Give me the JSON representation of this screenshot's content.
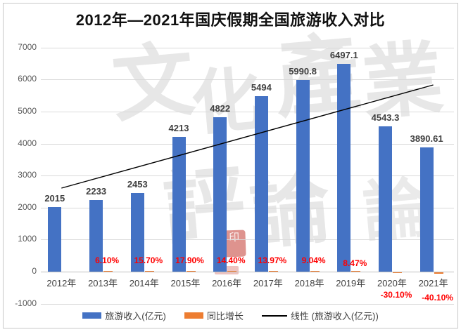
{
  "title": "2012年—2021年国庆假期全国旅游收入对比",
  "watermark": {
    "chars": [
      "文",
      "化",
      "產",
      "業",
      "評",
      "論",
      "論"
    ],
    "stamp_char": "印"
  },
  "chart_data": {
    "type": "bar",
    "title": "2012年—2021年国庆假期全国旅游收入对比",
    "categories": [
      "2012年",
      "2013年",
      "2014年",
      "2015年",
      "2016年",
      "2017年",
      "2018年",
      "2019年",
      "2020年",
      "2021年"
    ],
    "series": [
      {
        "name": "旅游收入(亿元)",
        "type": "bar",
        "color": "#4472C4",
        "values": [
          2015,
          2233,
          2453,
          4213,
          4822,
          5494,
          5990.8,
          6497.1,
          4543.3,
          3890.61
        ],
        "labels": [
          "2015",
          "2233",
          "2453",
          "4213",
          "4822",
          "5494",
          "5990.8",
          "6497.1",
          "4543.3",
          "3890.61"
        ]
      },
      {
        "name": "同比增长",
        "type": "bar",
        "color": "#ED7D31",
        "values": [
          null,
          6.1,
          15.7,
          17.9,
          14.4,
          13.97,
          9.04,
          8.47,
          -30.1,
          -40.1
        ],
        "labels": [
          null,
          "6.10%",
          "15.70%",
          "17.90%",
          "14.40%",
          "13.97%",
          "9.04%",
          "8.47%",
          "-30.10%",
          "-40.10%"
        ],
        "label_color": "#FF0000"
      }
    ],
    "trendline": {
      "name": "线性 (旅游收入(亿元))",
      "color": "#000000",
      "start_value": 2609,
      "end_value": 5833
    },
    "xlabel": "",
    "ylabel": "",
    "ylim": [
      -1000,
      7000
    ],
    "y_ticks": [
      7000,
      6000,
      5000,
      4000,
      3000,
      2000,
      1000,
      0,
      -1000
    ],
    "grid": true,
    "legend_position": "bottom"
  },
  "legend": {
    "items": [
      {
        "label": "旅游收入(亿元)",
        "color": "#4472C4",
        "type": "rect"
      },
      {
        "label": "同比增长",
        "color": "#ED7D31",
        "type": "rect"
      },
      {
        "label": "线性 (旅游收入(亿元))",
        "color": "#000000",
        "type": "line"
      }
    ]
  }
}
